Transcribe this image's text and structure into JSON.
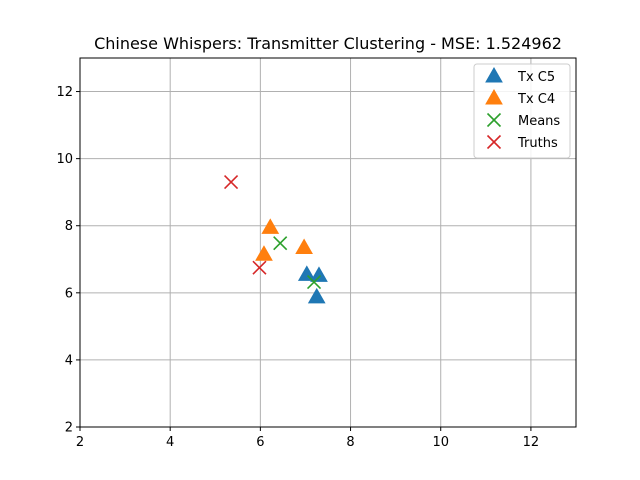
{
  "chart_data": {
    "type": "scatter",
    "title": "Chinese Whispers: Transmitter Clustering - MSE: 1.524962",
    "xlabel": "",
    "ylabel": "",
    "xlim": [
      2,
      13
    ],
    "ylim": [
      2,
      13
    ],
    "xticks": [
      2,
      4,
      6,
      8,
      10,
      12
    ],
    "yticks": [
      2,
      4,
      6,
      8,
      10,
      12
    ],
    "grid": true,
    "legend_position": "top-right",
    "series": [
      {
        "name": "Tx C5",
        "marker": "triangle",
        "color": "#1f77b4",
        "points": [
          [
            7.03,
            6.55
          ],
          [
            7.3,
            6.52
          ],
          [
            7.25,
            5.88
          ]
        ]
      },
      {
        "name": "Tx C4",
        "marker": "triangle",
        "color": "#ff7f0e",
        "points": [
          [
            6.22,
            7.95
          ],
          [
            6.08,
            7.15
          ],
          [
            6.97,
            7.35
          ]
        ]
      },
      {
        "name": "Means",
        "marker": "x",
        "color": "#2ca02c",
        "points": [
          [
            6.44,
            7.48
          ],
          [
            7.19,
            6.32
          ]
        ]
      },
      {
        "name": "Truths",
        "marker": "x",
        "color": "#d62728",
        "points": [
          [
            5.35,
            9.3
          ],
          [
            5.98,
            6.75
          ]
        ]
      }
    ]
  }
}
